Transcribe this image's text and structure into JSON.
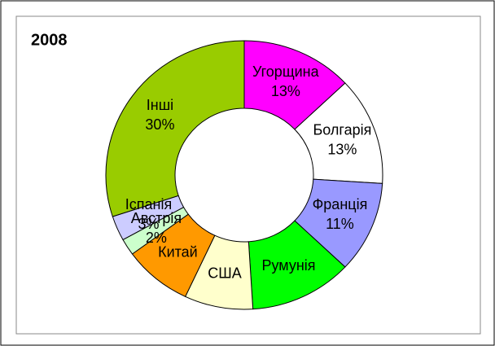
{
  "chart_data": {
    "type": "donut",
    "title": "2008",
    "categories": [
      "Угорщина",
      "Болгарія",
      "Франція",
      "Румунія",
      "США",
      "Китай",
      "Австрія",
      "Іспанія",
      "Інші"
    ],
    "values": [
      13,
      13,
      11,
      12,
      8,
      8,
      2,
      3,
      30
    ],
    "value_labels": [
      "13%",
      "13%",
      "11%",
      null,
      null,
      null,
      "2%",
      "3%",
      "30%"
    ],
    "colors": [
      "#ff00ff",
      "#ffffff",
      "#9999ff",
      "#00ff00",
      "#ffffcc",
      "#ff9900",
      "#ccffcc",
      "#ccccff",
      "#99cc00"
    ]
  }
}
